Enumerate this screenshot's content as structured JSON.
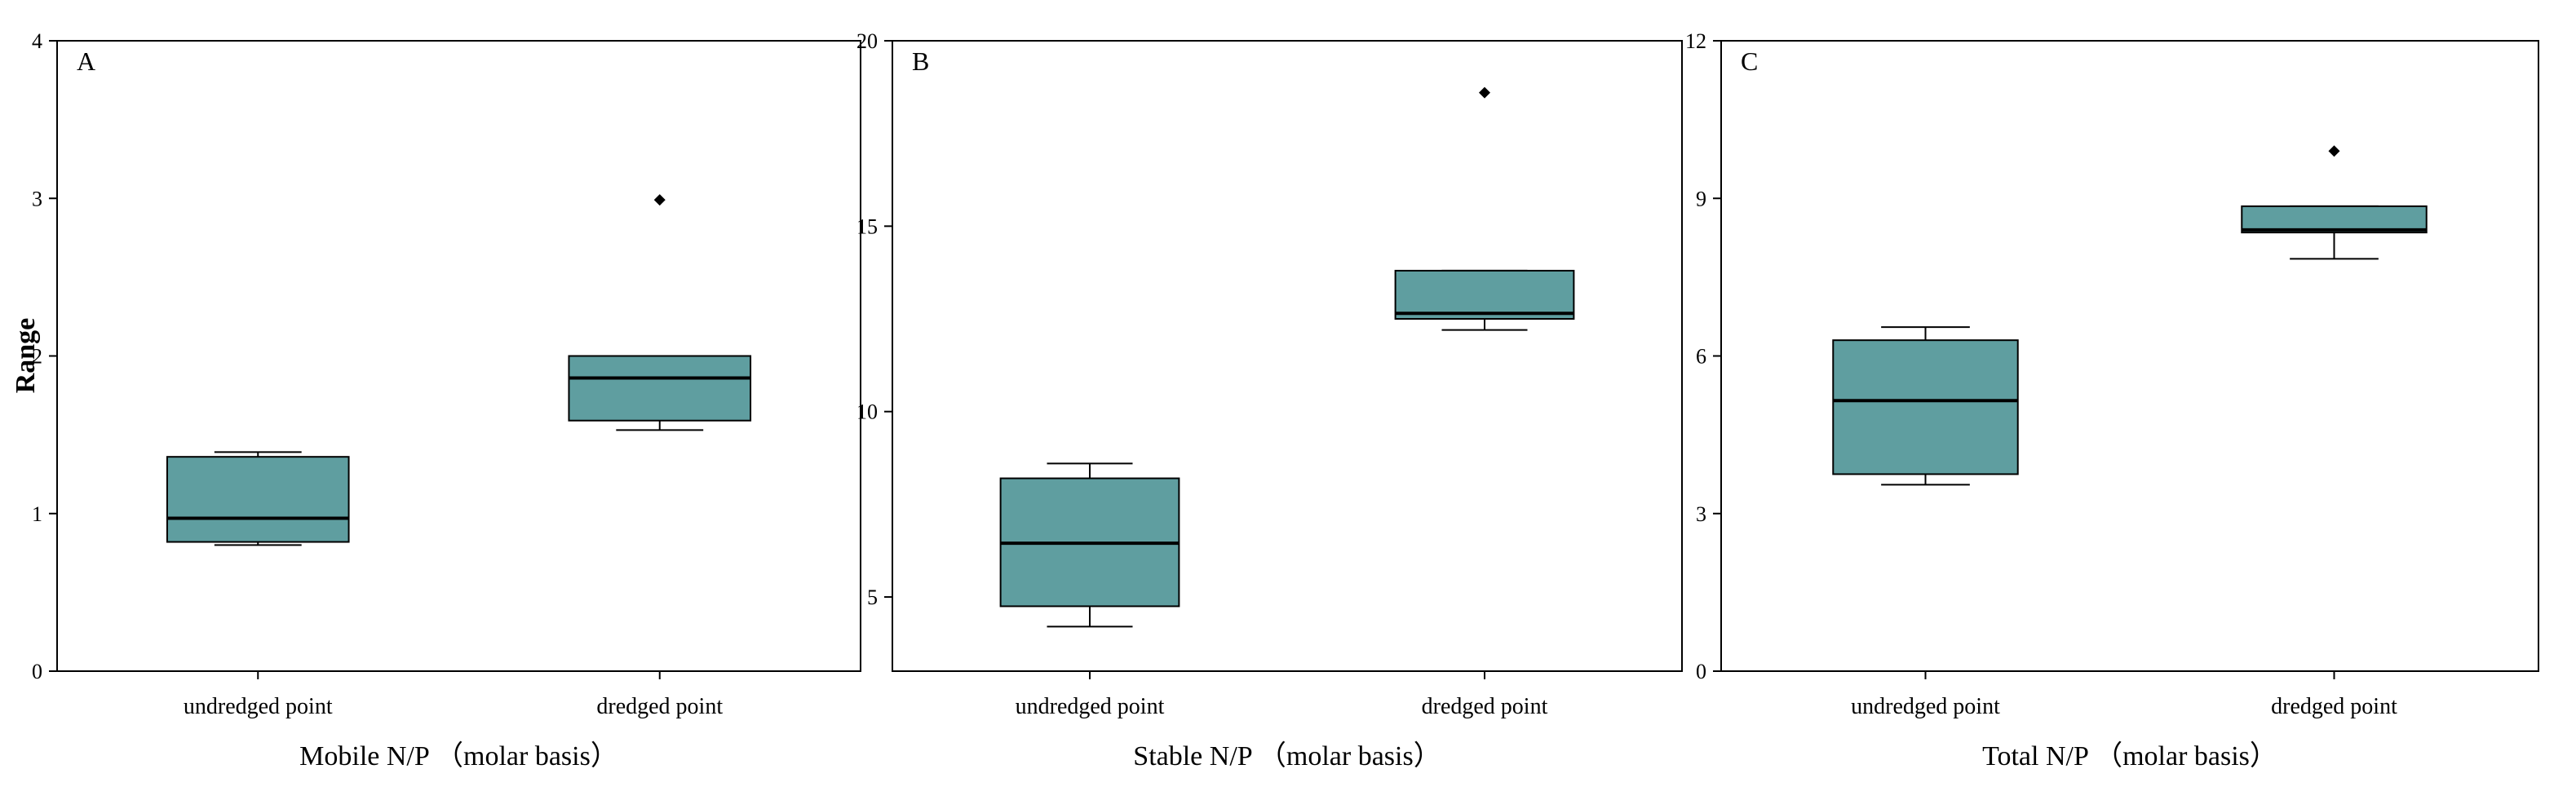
{
  "figure": {
    "y_axis_title": "Range",
    "box_color": "#5f9ea0",
    "panels": [
      {
        "letter": "A",
        "xlabel": "Mobile N/P （molar basis）"
      },
      {
        "letter": "B",
        "xlabel": "Stable N/P （molar basis）"
      },
      {
        "letter": "C",
        "xlabel": "Total N/P （molar basis）"
      }
    ]
  },
  "chart_data": [
    {
      "type": "box",
      "title": "",
      "panel_label": "A",
      "xlabel": "Mobile N/P （molar basis）",
      "ylabel": "Range",
      "ylim": [
        0,
        4
      ],
      "yticks": [
        0,
        1,
        2,
        3,
        4
      ],
      "categories": [
        "undredged point",
        "dredged point"
      ],
      "boxes": [
        {
          "category": "undredged point",
          "whisker_low": 0.8,
          "q1": 0.82,
          "median": 0.97,
          "q3": 1.36,
          "whisker_high": 1.39,
          "outliers": []
        },
        {
          "category": "dredged point",
          "whisker_low": 1.53,
          "q1": 1.59,
          "median": 1.86,
          "q3": 2.0,
          "whisker_high": 2.0,
          "outliers": [
            2.99
          ]
        }
      ]
    },
    {
      "type": "box",
      "title": "",
      "panel_label": "B",
      "xlabel": "Stable N/P （molar basis）",
      "ylabel": "",
      "ylim": [
        3,
        20
      ],
      "yticks": [
        5,
        10,
        15,
        20
      ],
      "categories": [
        "undredged point",
        "dredged point"
      ],
      "boxes": [
        {
          "category": "undredged point",
          "whisker_low": 4.2,
          "q1": 4.75,
          "median": 6.45,
          "q3": 8.2,
          "whisker_high": 8.6,
          "outliers": []
        },
        {
          "category": "dredged point",
          "whisker_low": 12.2,
          "q1": 12.5,
          "median": 12.65,
          "q3": 13.8,
          "whisker_high": 13.8,
          "outliers": [
            18.6
          ]
        }
      ]
    },
    {
      "type": "box",
      "title": "",
      "panel_label": "C",
      "xlabel": "Total N/P （molar basis）",
      "ylabel": "",
      "ylim": [
        0,
        12
      ],
      "yticks": [
        0,
        3,
        6,
        9,
        12
      ],
      "categories": [
        "undredged point",
        "dredged point"
      ],
      "boxes": [
        {
          "category": "undredged point",
          "whisker_low": 3.55,
          "q1": 3.75,
          "median": 5.15,
          "q3": 6.3,
          "whisker_high": 6.55,
          "outliers": []
        },
        {
          "category": "dredged point",
          "whisker_low": 7.85,
          "q1": 8.35,
          "median": 8.4,
          "q3": 8.85,
          "whisker_high": 8.85,
          "outliers": [
            9.9
          ]
        }
      ]
    }
  ]
}
